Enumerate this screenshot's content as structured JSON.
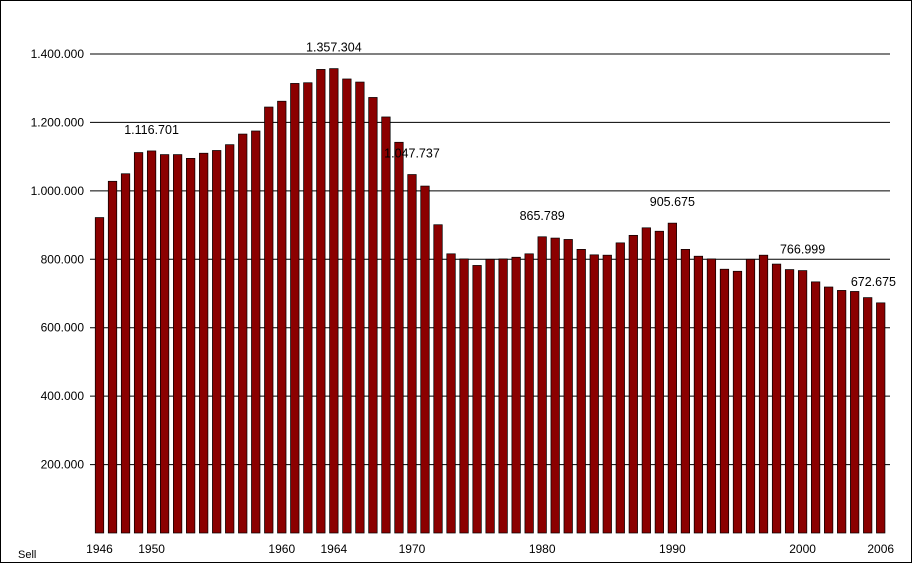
{
  "chart_data": {
    "type": "bar",
    "title": "",
    "xlabel": "",
    "ylabel": "",
    "corner_label": "Sell",
    "bar_color": "#8b0000",
    "ylim": [
      0,
      1400000
    ],
    "y_ticks": [
      200000,
      400000,
      600000,
      800000,
      1000000,
      1200000,
      1400000
    ],
    "y_tick_labels": [
      "200.000",
      "400.000",
      "600.000",
      "800.000",
      "1.000.000",
      "1.200.000",
      "1.400.000"
    ],
    "categories": [
      1946,
      1947,
      1948,
      1949,
      1950,
      1951,
      1952,
      1953,
      1954,
      1955,
      1956,
      1957,
      1958,
      1959,
      1960,
      1961,
      1962,
      1963,
      1964,
      1965,
      1966,
      1967,
      1968,
      1969,
      1970,
      1971,
      1972,
      1973,
      1974,
      1975,
      1976,
      1977,
      1978,
      1979,
      1980,
      1981,
      1982,
      1983,
      1984,
      1985,
      1986,
      1987,
      1988,
      1989,
      1990,
      1991,
      1992,
      1993,
      1994,
      1995,
      1996,
      1997,
      1998,
      1999,
      2000,
      2001,
      2002,
      2003,
      2004,
      2005,
      2006
    ],
    "x_tick_labels": [
      {
        "year": 1946,
        "label": "1946"
      },
      {
        "year": 1950,
        "label": "1950"
      },
      {
        "year": 1960,
        "label": "1960"
      },
      {
        "year": 1964,
        "label": "1964"
      },
      {
        "year": 1970,
        "label": "1970"
      },
      {
        "year": 1980,
        "label": "1980"
      },
      {
        "year": 1990,
        "label": "1990"
      },
      {
        "year": 2000,
        "label": "2000"
      },
      {
        "year": 2006,
        "label": "2006"
      }
    ],
    "values": [
      922000,
      1028000,
      1050000,
      1112000,
      1116701,
      1106000,
      1106000,
      1095000,
      1110000,
      1118000,
      1135000,
      1166000,
      1175000,
      1245000,
      1262000,
      1314000,
      1316000,
      1355000,
      1357304,
      1327000,
      1318000,
      1273000,
      1216000,
      1142000,
      1047737,
      1014000,
      901000,
      816000,
      801000,
      782000,
      800000,
      801000,
      806000,
      816000,
      865789,
      862000,
      858000,
      829000,
      813000,
      812000,
      848000,
      870000,
      892000,
      882000,
      905675,
      829000,
      809000,
      801000,
      771000,
      765000,
      800000,
      812000,
      786000,
      770000,
      766999,
      734000,
      719000,
      709000,
      706000,
      688000,
      672675
    ],
    "annotations": [
      {
        "year": 1950,
        "text": "1.116.701"
      },
      {
        "year": 1964,
        "text": "1.357.304"
      },
      {
        "year": 1970,
        "text": "1.047.737"
      },
      {
        "year": 1980,
        "text": "865.789"
      },
      {
        "year": 1990,
        "text": "905.675"
      },
      {
        "year": 2000,
        "text": "766.999"
      },
      {
        "year": 2006,
        "text": "672.675"
      }
    ]
  }
}
